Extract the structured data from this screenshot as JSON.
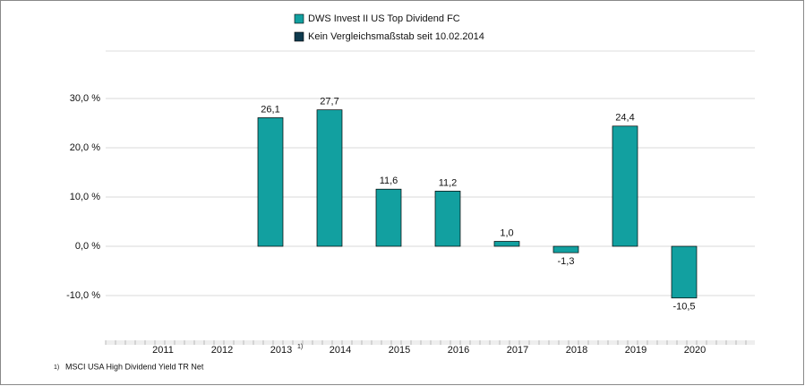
{
  "chart_data": {
    "type": "bar",
    "series": [
      {
        "name": "DWS Invest II US Top Dividend  FC",
        "color": "#12a0a0",
        "values": [
          null,
          null,
          26.1,
          27.7,
          11.6,
          11.2,
          1.0,
          -1.3,
          24.4,
          -10.5
        ],
        "value_labels": [
          null,
          null,
          "26,1",
          "27,7",
          "11,6",
          "11,2",
          "1,0",
          "-1,3",
          "24,4",
          "-10,5"
        ]
      },
      {
        "name": "Kein Vergleichsmaßstab seit 10.02.2014",
        "color": "#0e3a4e",
        "values": [
          null,
          null,
          null,
          null,
          null,
          null,
          null,
          null,
          null,
          null
        ]
      }
    ],
    "categories": [
      "2011",
      "2012",
      "2013",
      "2014",
      "2015",
      "2016",
      "2017",
      "2018",
      "2019",
      "2020"
    ],
    "ylim": [
      -20,
      40
    ],
    "yticks": [
      {
        "value": -10,
        "label": "-10,0 %"
      },
      {
        "value": 0,
        "label": "0,0 %"
      },
      {
        "value": 10,
        "label": "10,0 %"
      },
      {
        "value": 20,
        "label": "20,0 %"
      },
      {
        "value": 30,
        "label": "30,0 %"
      }
    ],
    "grid": true,
    "footnote": {
      "marker": "1)",
      "text": "MSCI USA High Dividend Yield  TR Net"
    }
  }
}
